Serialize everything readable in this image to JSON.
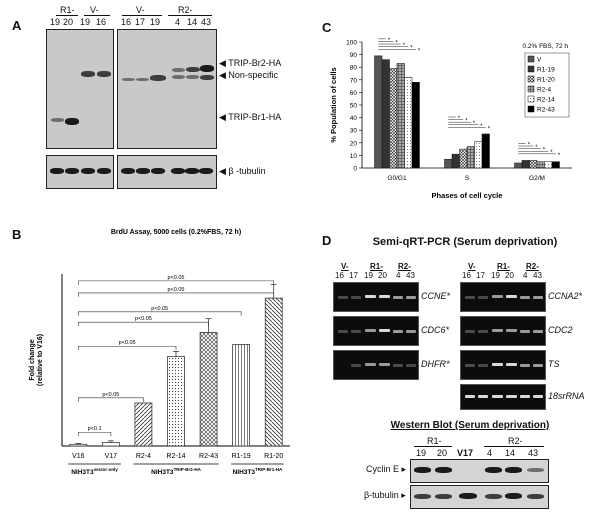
{
  "panelA": {
    "letter": "A",
    "group_left1": "R1-",
    "group_left2": "V-",
    "lanes_left": [
      "19",
      "20",
      "19",
      "16"
    ],
    "group_right1": "V-",
    "group_right2": "R2-",
    "lanes_right": [
      "16",
      "17",
      "19",
      "4",
      "14",
      "43"
    ],
    "band_label_trip_br2": "TRIP-Br2-HA",
    "band_label_nonspecific": "Non-specific",
    "band_label_trip_br1": "TRIP-Br1-HA",
    "band_label_tubulin": "β -tubulin"
  },
  "panelB": {
    "letter": "B",
    "title": "BrdU Assay, 5000 cells (0.2%FBS, 72 h)",
    "ylabel": "Fold change (relative to V16)",
    "ylabel_line1": "Fold change",
    "ylabel_line2": "(relative to V16)",
    "group_label_1": "NIH3T3",
    "group_sup_1": "vector-only",
    "group_label_2": "NIH3T3",
    "group_sup_2": "TRIP-Br2-HA",
    "group_label_3": "NIH3T3",
    "group_sup_3": "TRIP-Br1-HA",
    "sig_labels": [
      "p<0.1",
      "p<0.05",
      "p<0.05",
      "p<0.05",
      "p<0.05",
      "p<0.05",
      "p<0.05"
    ]
  },
  "panelC": {
    "letter": "C",
    "ylabel": "% Population of cells",
    "xlabel": "Phases of cell cycle",
    "condition": "0.2% FBS, 72 h"
  },
  "panelD": {
    "letter": "D",
    "pcr_title": "Semi-qRT-PCR (Serum deprivation)",
    "group_v": "V-",
    "group_r1": "R1-",
    "group_r2": "R2-",
    "lanes": [
      "16",
      "17",
      "19",
      "20",
      "4",
      "43"
    ],
    "genes_left": [
      "CCNE*",
      "CDC6*",
      "DHFR*"
    ],
    "genes_right": [
      "CCNA2*",
      "CDC2",
      "TS",
      "18srRNA"
    ],
    "wb_title": "Western Blot (Serum deprivation)",
    "wb_group_r1": "R1-",
    "wb_group_r2": "R2-",
    "wb_lanes": [
      "19",
      "20",
      "V17",
      "4",
      "14",
      "43"
    ],
    "wb_row1": "Cyclin E",
    "wb_row2": "β-tubulin"
  },
  "chart_data": [
    {
      "type": "bar",
      "title": "BrdU Assay, 5000 cells (0.2%FBS, 72 h)",
      "xlabel": "",
      "ylabel": "Fold change (relative to V16)",
      "categories": [
        "V16",
        "V17",
        "R2-4",
        "R2-14",
        "R2-43",
        "R1-19",
        "R1-20"
      ],
      "values": [
        1,
        2,
        25,
        52,
        66,
        59,
        86
      ],
      "errors": [
        0.5,
        1,
        0,
        3,
        8,
        0,
        8
      ],
      "ylim": [
        0,
        100
      ],
      "grid": false,
      "legend": "none"
    },
    {
      "type": "bar",
      "title": "",
      "xlabel": "Phases of cell cycle",
      "ylabel": "% Population of cells",
      "categories": [
        "G0/G1",
        "S",
        "G2/M"
      ],
      "series": [
        {
          "name": "V",
          "values": [
            89,
            7,
            4
          ]
        },
        {
          "name": "R1-19",
          "values": [
            86,
            11,
            6
          ]
        },
        {
          "name": "R1-20",
          "values": [
            79,
            15,
            6
          ]
        },
        {
          "name": "R2-4",
          "values": [
            83,
            17,
            5
          ]
        },
        {
          "name": "R2-14",
          "values": [
            72,
            21,
            5
          ]
        },
        {
          "name": "R2-43",
          "values": [
            68,
            27,
            5
          ]
        }
      ],
      "yticks": [
        0,
        10,
        20,
        30,
        40,
        50,
        60,
        70,
        80,
        90,
        100
      ],
      "ylim": [
        0,
        100
      ],
      "legend": "top-right",
      "grid": false
    }
  ]
}
